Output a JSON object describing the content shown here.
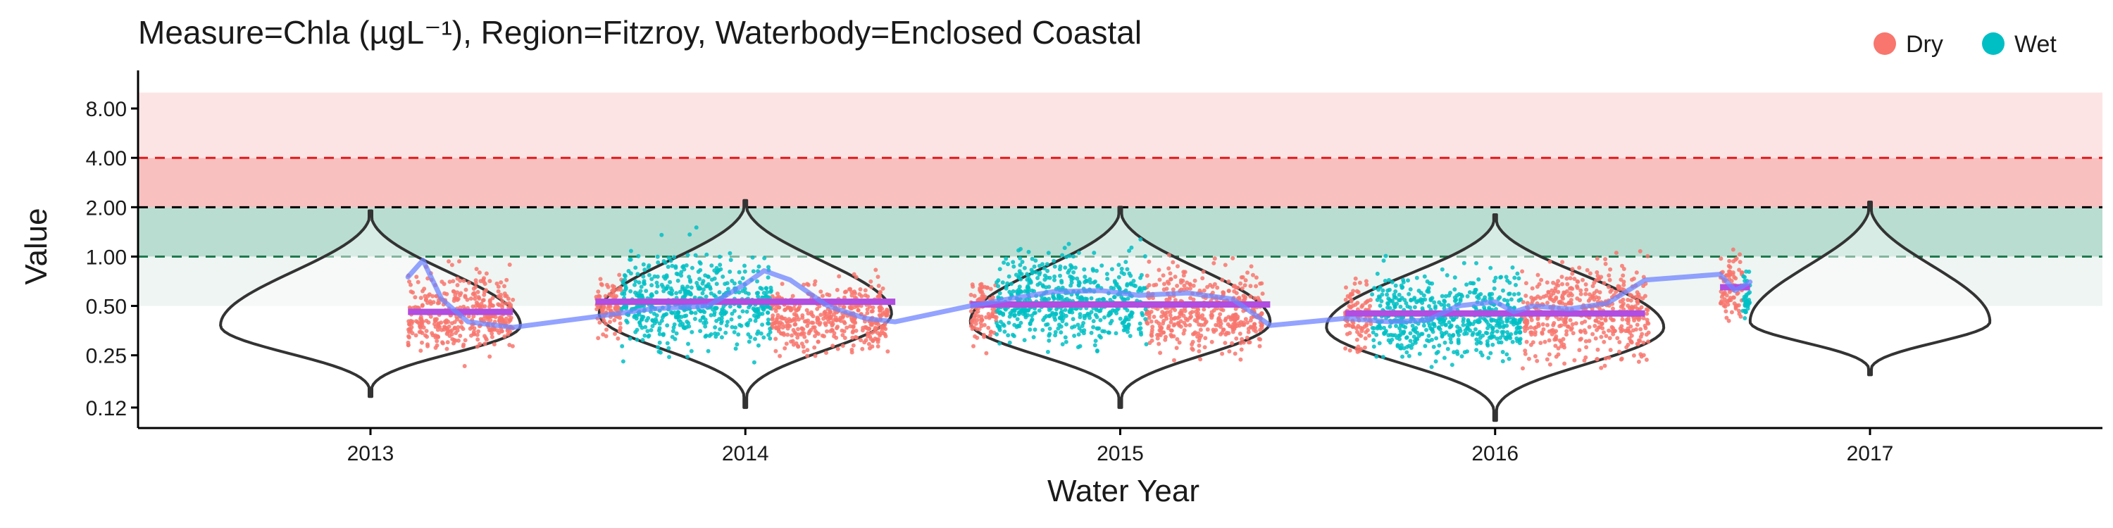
{
  "chart_data": {
    "type": "scatter",
    "title": "Measure=Chla (µgL⁻¹), Region=Fitzroy, Waterbody=Enclosed Coastal",
    "xlabel": "Water Year",
    "ylabel": "Value",
    "y_scale": "log2",
    "ylim": [
      0.09,
      13
    ],
    "yticks": [
      0.12,
      0.25,
      0.5,
      1.0,
      2.0,
      4.0,
      8.0
    ],
    "ytick_labels": [
      "0.12",
      "0.25",
      "0.50",
      "1.00",
      "2.00",
      "4.00",
      "8.00"
    ],
    "xlim": [
      2012.38,
      2017.62
    ],
    "xticks": [
      2013,
      2014,
      2015,
      2016,
      2017
    ],
    "xtick_labels": [
      "2013",
      "2014",
      "2015",
      "2016",
      "2017"
    ],
    "grid": false,
    "legend": {
      "position": "top-right",
      "entries": [
        {
          "label": "Dry",
          "color": "#F8766D"
        },
        {
          "label": "Wet",
          "color": "#00BFC4"
        }
      ]
    },
    "bands": [
      {
        "from": 0.5,
        "to": 1.0,
        "color": "#eef5f2"
      },
      {
        "from": 1.0,
        "to": 2.0,
        "color": "#b9ddd1"
      },
      {
        "from": 2.0,
        "to": 4.0,
        "color": "#f9c0c0"
      },
      {
        "from": 4.0,
        "to": 10.0,
        "color": "#fde4e4"
      }
    ],
    "reference_lines": [
      {
        "y": 1.0,
        "color": "#1f7a4f",
        "style": "dashed"
      },
      {
        "y": 2.0,
        "color": "#000000",
        "style": "dashed"
      },
      {
        "y": 4.0,
        "color": "#e31a1c",
        "style": "dashed"
      }
    ],
    "violins": [
      {
        "x": 2013,
        "ymin": 0.14,
        "ymax": 1.9,
        "mode": 0.38,
        "halfwidth": 0.4
      },
      {
        "x": 2014,
        "ymin": 0.12,
        "ymax": 2.2,
        "mode": 0.45,
        "halfwidth": 0.39
      },
      {
        "x": 2015,
        "ymin": 0.12,
        "ymax": 2.0,
        "mode": 0.4,
        "halfwidth": 0.4
      },
      {
        "x": 2016,
        "ymin": 0.1,
        "ymax": 1.8,
        "mode": 0.37,
        "halfwidth": 0.45
      },
      {
        "x": 2017,
        "ymin": 0.19,
        "ymax": 2.15,
        "mode": 0.4,
        "halfwidth": 0.32
      }
    ],
    "series": [
      {
        "name": "Dry",
        "color": "#F8766D",
        "clusters": [
          {
            "x_from": 2013.1,
            "x_to": 2013.38,
            "median": 0.42,
            "low": 0.16,
            "high": 1.9
          },
          {
            "x_from": 2013.6,
            "x_to": 2013.67,
            "median": 0.5,
            "low": 0.2,
            "high": 1.2
          },
          {
            "x_from": 2014.07,
            "x_to": 2014.38,
            "median": 0.42,
            "low": 0.17,
            "high": 1.3
          },
          {
            "x_from": 2014.6,
            "x_to": 2014.67,
            "median": 0.5,
            "low": 0.2,
            "high": 1.2
          },
          {
            "x_from": 2015.07,
            "x_to": 2015.38,
            "median": 0.45,
            "low": 0.15,
            "high": 1.9
          },
          {
            "x_from": 2015.6,
            "x_to": 2015.67,
            "median": 0.42,
            "low": 0.17,
            "high": 1.3
          },
          {
            "x_from": 2016.07,
            "x_to": 2016.41,
            "median": 0.45,
            "low": 0.12,
            "high": 1.95
          },
          {
            "x_from": 2016.6,
            "x_to": 2016.66,
            "median": 0.65,
            "low": 0.25,
            "high": 2.0
          }
        ]
      },
      {
        "name": "Wet",
        "color": "#00BFC4",
        "clusters": [
          {
            "x_from": 2013.67,
            "x_to": 2014.07,
            "median": 0.52,
            "low": 0.15,
            "high": 2.3
          },
          {
            "x_from": 2014.67,
            "x_to": 2015.07,
            "median": 0.52,
            "low": 0.17,
            "high": 2.5
          },
          {
            "x_from": 2015.67,
            "x_to": 2016.07,
            "median": 0.42,
            "low": 0.14,
            "high": 1.6
          },
          {
            "x_from": 2016.66,
            "x_to": 2016.68,
            "median": 0.55,
            "low": 0.3,
            "high": 1.8
          }
        ]
      }
    ],
    "median_lines": [
      {
        "x_from": 2013.1,
        "x_to": 2013.38,
        "y": 0.46
      },
      {
        "x_from": 2013.6,
        "x_to": 2014.4,
        "y": 0.53
      },
      {
        "x_from": 2014.6,
        "x_to": 2015.4,
        "y": 0.51
      },
      {
        "x_from": 2015.6,
        "x_to": 2016.4,
        "y": 0.45
      },
      {
        "x_from": 2016.6,
        "x_to": 2016.68,
        "y": 0.65
      }
    ],
    "smooth_trend": [
      {
        "x": 2013.1,
        "y": 0.75
      },
      {
        "x": 2013.14,
        "y": 0.95
      },
      {
        "x": 2013.19,
        "y": 0.55
      },
      {
        "x": 2013.26,
        "y": 0.4
      },
      {
        "x": 2013.38,
        "y": 0.37
      },
      {
        "x": 2013.6,
        "y": 0.43
      },
      {
        "x": 2013.75,
        "y": 0.48
      },
      {
        "x": 2013.9,
        "y": 0.5
      },
      {
        "x": 2014.0,
        "y": 0.68
      },
      {
        "x": 2014.05,
        "y": 0.82
      },
      {
        "x": 2014.12,
        "y": 0.72
      },
      {
        "x": 2014.22,
        "y": 0.5
      },
      {
        "x": 2014.32,
        "y": 0.42
      },
      {
        "x": 2014.4,
        "y": 0.4
      },
      {
        "x": 2014.6,
        "y": 0.5
      },
      {
        "x": 2014.7,
        "y": 0.55
      },
      {
        "x": 2014.82,
        "y": 0.61
      },
      {
        "x": 2014.95,
        "y": 0.62
      },
      {
        "x": 2015.05,
        "y": 0.58
      },
      {
        "x": 2015.18,
        "y": 0.6
      },
      {
        "x": 2015.3,
        "y": 0.55
      },
      {
        "x": 2015.4,
        "y": 0.38
      },
      {
        "x": 2015.6,
        "y": 0.42
      },
      {
        "x": 2015.72,
        "y": 0.4
      },
      {
        "x": 2015.82,
        "y": 0.41
      },
      {
        "x": 2015.9,
        "y": 0.5
      },
      {
        "x": 2016.0,
        "y": 0.53
      },
      {
        "x": 2016.05,
        "y": 0.46
      },
      {
        "x": 2016.1,
        "y": 0.5
      },
      {
        "x": 2016.2,
        "y": 0.48
      },
      {
        "x": 2016.3,
        "y": 0.52
      },
      {
        "x": 2016.4,
        "y": 0.72
      },
      {
        "x": 2016.6,
        "y": 0.78
      },
      {
        "x": 2016.64,
        "y": 0.62
      },
      {
        "x": 2016.68,
        "y": 0.7
      }
    ]
  }
}
